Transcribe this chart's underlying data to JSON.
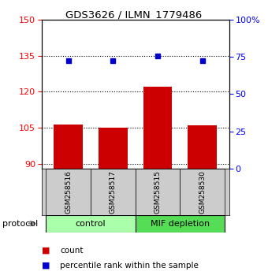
{
  "title": "GDS3626 / ILMN_1779486",
  "samples": [
    "GSM258516",
    "GSM258517",
    "GSM258515",
    "GSM258530"
  ],
  "bar_values": [
    106.5,
    105.0,
    122.0,
    106.0
  ],
  "percentile_values": [
    133.0,
    133.0,
    135.0,
    133.0
  ],
  "bar_color": "#cc0000",
  "percentile_color": "#0000cc",
  "ylim_left": [
    88,
    150
  ],
  "ylim_right": [
    0,
    100
  ],
  "yticks_left": [
    90,
    105,
    120,
    135,
    150
  ],
  "yticks_right": [
    0,
    25,
    50,
    75,
    100
  ],
  "ytick_labels_right": [
    "0",
    "25",
    "50",
    "75",
    "100%"
  ],
  "groups": [
    {
      "label": "control",
      "indices": [
        0,
        1
      ],
      "color": "#aaffaa"
    },
    {
      "label": "MIF depletion",
      "indices": [
        2,
        3
      ],
      "color": "#55dd55"
    }
  ],
  "protocol_label": "protocol",
  "legend_count_label": "count",
  "legend_percentile_label": "percentile rank within the sample",
  "background_color": "#ffffff",
  "bar_bottom": 88,
  "bar_width": 0.65,
  "grid_linestyle": "dotted"
}
